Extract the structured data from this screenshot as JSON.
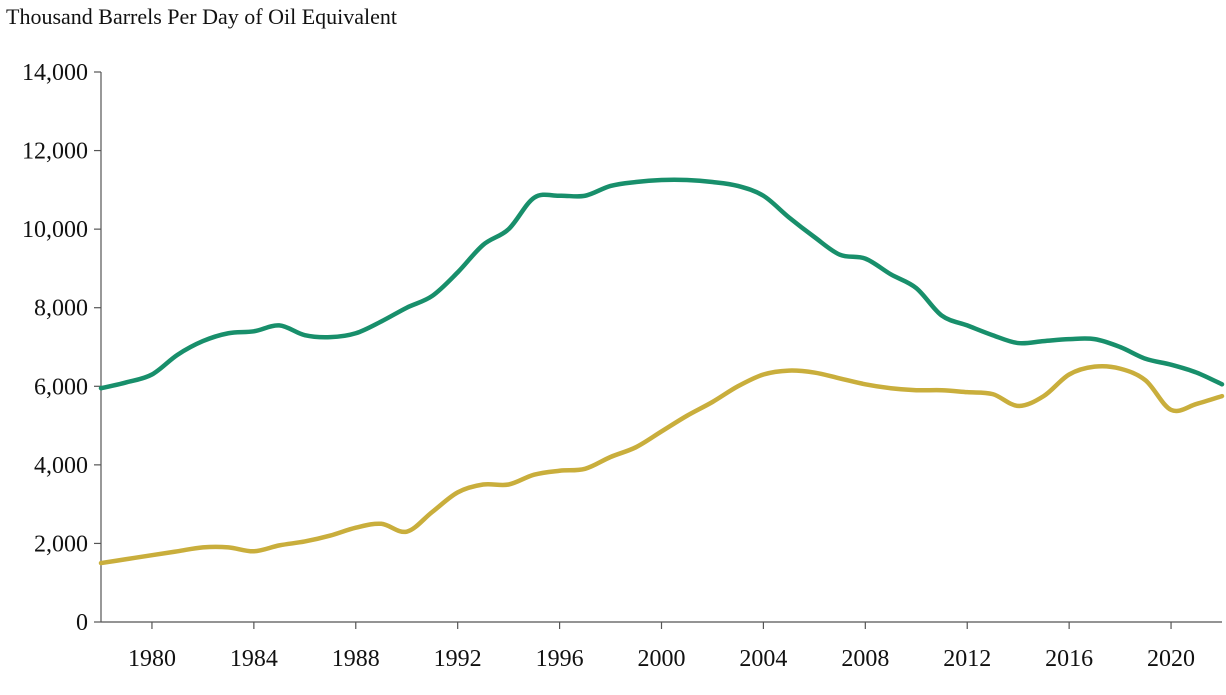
{
  "subtitle": "Thousand Barrels Per Day of Oil Equivalent",
  "chart_data": {
    "type": "line",
    "title": "",
    "subtitle": "Thousand Barrels Per Day of Oil Equivalent",
    "xlabel": "",
    "ylabel": "",
    "xlim": [
      1978,
      2022
    ],
    "ylim": [
      0,
      14000
    ],
    "grid": false,
    "legend": "none",
    "x_ticks": [
      1980,
      1984,
      1988,
      1992,
      1996,
      2000,
      2004,
      2008,
      2012,
      2016,
      2020
    ],
    "x_tick_labels": [
      "1980",
      "1984",
      "1988",
      "1992",
      "1996",
      "2000",
      "2004",
      "2008",
      "2012",
      "2016",
      "2020"
    ],
    "y_ticks": [
      0,
      2000,
      4000,
      6000,
      8000,
      10000,
      12000,
      14000
    ],
    "y_tick_labels": [
      "0",
      "2,000",
      "4,000",
      "6,000",
      "8,000",
      "10,000",
      "12,000",
      "14,000"
    ],
    "x": [
      1978,
      1979,
      1980,
      1981,
      1982,
      1983,
      1984,
      1985,
      1986,
      1987,
      1988,
      1989,
      1990,
      1991,
      1992,
      1993,
      1994,
      1995,
      1996,
      1997,
      1998,
      1999,
      2000,
      2001,
      2002,
      2003,
      2004,
      2005,
      2006,
      2007,
      2008,
      2009,
      2010,
      2011,
      2012,
      2013,
      2014,
      2015,
      2016,
      2017,
      2018,
      2019,
      2020,
      2021,
      2022
    ],
    "series": [
      {
        "color": "#188F6B",
        "values": [
          5950,
          6100,
          6300,
          6800,
          7150,
          7350,
          7400,
          7550,
          7300,
          7250,
          7350,
          7650,
          8000,
          8300,
          8900,
          9600,
          10000,
          10800,
          10850,
          10850,
          11100,
          11200,
          11250,
          11250,
          11200,
          11100,
          10850,
          10300,
          9800,
          9350,
          9250,
          8850,
          8500,
          7800,
          7550,
          7300,
          7100,
          7150,
          7200,
          7200,
          7000,
          6700,
          6550,
          6350,
          6050
        ]
      },
      {
        "color": "#C9AE3C",
        "values": [
          1500,
          1600,
          1700,
          1800,
          1900,
          1900,
          1800,
          1950,
          2050,
          2200,
          2400,
          2500,
          2300,
          2800,
          3300,
          3500,
          3500,
          3750,
          3850,
          3900,
          4200,
          4450,
          4850,
          5250,
          5600,
          6000,
          6300,
          6400,
          6350,
          6200,
          6050,
          5950,
          5900,
          5900,
          5850,
          5800,
          5500,
          5750,
          6300,
          6500,
          6450,
          6150,
          5400,
          5550,
          5750
        ]
      }
    ]
  }
}
